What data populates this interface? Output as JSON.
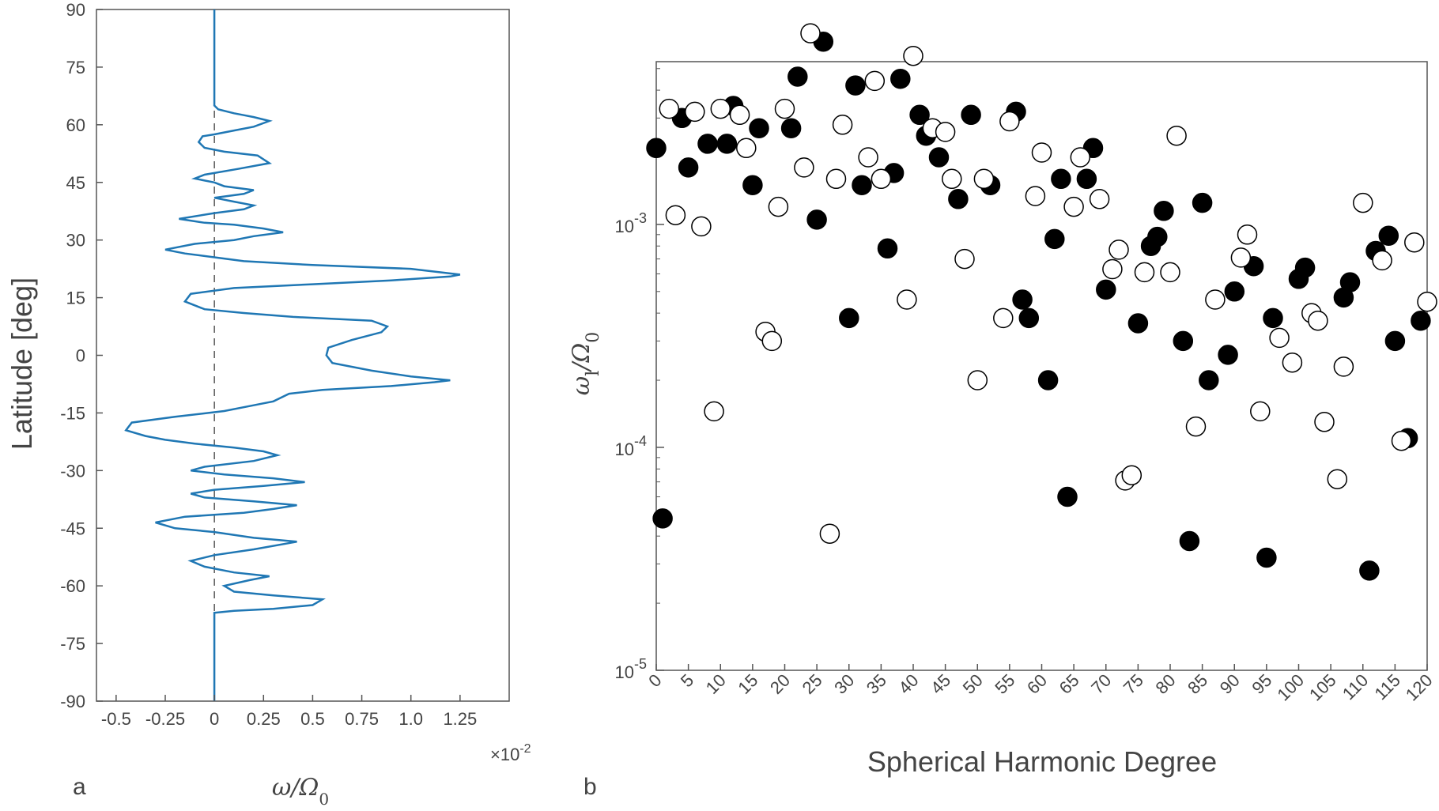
{
  "colors": {
    "curve": "#1f77b4",
    "axis": "#555555",
    "text": "#444444",
    "filled": "#000000"
  },
  "chart_data": [
    {
      "type": "line",
      "panel_label": "a",
      "orientation": "vertical-profile",
      "xlabel": "ω/Ω",
      "xlabel_sub": "0",
      "ylabel": "Latitude [deg]",
      "x_exponent_label": "×10",
      "x_exponent_sup": "-2",
      "xlim": [
        -0.6,
        1.5
      ],
      "ylim": [
        -90,
        90
      ],
      "xticks": [
        -0.5,
        -0.25,
        0,
        0.25,
        0.5,
        0.75,
        1.0,
        1.25
      ],
      "xtick_labels": [
        "-0.5",
        "-0.25",
        "0",
        "0.25",
        "0.5",
        "0.75",
        "1.0",
        "1.25"
      ],
      "yticks": [
        -90,
        -75,
        -60,
        -45,
        -30,
        -15,
        0,
        15,
        30,
        45,
        60,
        75,
        90
      ],
      "ytick_labels": [
        "-90",
        "-75",
        "-60",
        "-45",
        "-30",
        "-15",
        "0",
        "15",
        "30",
        "45",
        "60",
        "75",
        "90"
      ],
      "zero_line": "dashed",
      "series": [
        {
          "name": "omega_profile",
          "points": [
            [
              0,
              -90
            ],
            [
              0,
              -67
            ],
            [
              0.1,
              -66.5
            ],
            [
              0.3,
              -66
            ],
            [
              0.5,
              -65
            ],
            [
              0.55,
              -63.5
            ],
            [
              0.3,
              -62.5
            ],
            [
              0.1,
              -61.5
            ],
            [
              0.05,
              -60
            ],
            [
              0.18,
              -58.5
            ],
            [
              0.28,
              -57.5
            ],
            [
              0.1,
              -56.5
            ],
            [
              -0.05,
              -55
            ],
            [
              -0.12,
              -53.5
            ],
            [
              0,
              -52
            ],
            [
              0.2,
              -50.5
            ],
            [
              0.42,
              -48.5
            ],
            [
              0.2,
              -47.5
            ],
            [
              0,
              -46
            ],
            [
              -0.2,
              -45
            ],
            [
              -0.3,
              -43.5
            ],
            [
              -0.15,
              -42
            ],
            [
              0.15,
              -41
            ],
            [
              0.3,
              -40
            ],
            [
              0.42,
              -39
            ],
            [
              0.2,
              -38
            ],
            [
              -0.05,
              -37
            ],
            [
              -0.12,
              -36
            ],
            [
              0,
              -35
            ],
            [
              0.25,
              -34
            ],
            [
              0.46,
              -33
            ],
            [
              0.3,
              -32
            ],
            [
              0.05,
              -31
            ],
            [
              -0.12,
              -30
            ],
            [
              -0.05,
              -29
            ],
            [
              0.2,
              -27.5
            ],
            [
              0.32,
              -26
            ],
            [
              0.25,
              -25
            ],
            [
              0.1,
              -24
            ],
            [
              -0.1,
              -23
            ],
            [
              -0.25,
              -22
            ],
            [
              -0.35,
              -21
            ],
            [
              -0.45,
              -19.5
            ],
            [
              -0.42,
              -17.5
            ],
            [
              -0.2,
              -16
            ],
            [
              0.05,
              -14.5
            ],
            [
              0.2,
              -13
            ],
            [
              0.3,
              -12
            ],
            [
              0.38,
              -10
            ],
            [
              0.55,
              -9
            ],
            [
              0.9,
              -8
            ],
            [
              1.12,
              -7
            ],
            [
              1.2,
              -6.5
            ],
            [
              1.0,
              -5.5
            ],
            [
              0.8,
              -4
            ],
            [
              0.6,
              -2
            ],
            [
              0.57,
              0
            ],
            [
              0.58,
              2
            ],
            [
              0.7,
              4
            ],
            [
              0.85,
              6
            ],
            [
              0.88,
              7.5
            ],
            [
              0.8,
              9
            ],
            [
              0.4,
              10
            ],
            [
              0.15,
              11
            ],
            [
              -0.05,
              12
            ],
            [
              -0.15,
              14
            ],
            [
              -0.12,
              16
            ],
            [
              0.1,
              17.5
            ],
            [
              0.5,
              18.5
            ],
            [
              0.9,
              19.5
            ],
            [
              1.2,
              20.5
            ],
            [
              1.25,
              21
            ],
            [
              1.0,
              22.5
            ],
            [
              0.5,
              23.5
            ],
            [
              0.15,
              24.5
            ],
            [
              0,
              25.5
            ],
            [
              -0.15,
              26.5
            ],
            [
              -0.25,
              27.5
            ],
            [
              -0.1,
              29
            ],
            [
              0.1,
              30
            ],
            [
              0.2,
              31
            ],
            [
              0.35,
              32
            ],
            [
              0.25,
              33
            ],
            [
              0.1,
              34
            ],
            [
              -0.05,
              34.5
            ],
            [
              -0.18,
              35.5
            ],
            [
              0,
              37
            ],
            [
              0.15,
              38
            ],
            [
              0.2,
              39
            ],
            [
              0.1,
              40
            ],
            [
              0,
              41
            ],
            [
              0.15,
              42
            ],
            [
              0.2,
              43
            ],
            [
              0.05,
              44
            ],
            [
              0,
              45
            ],
            [
              -0.1,
              46
            ],
            [
              -0.05,
              47
            ],
            [
              0.12,
              48.5
            ],
            [
              0.28,
              50
            ],
            [
              0.22,
              52
            ],
            [
              0.05,
              53
            ],
            [
              -0.05,
              54
            ],
            [
              -0.08,
              55.5
            ],
            [
              -0.06,
              57
            ],
            [
              0,
              57.5
            ],
            [
              0.1,
              58.5
            ],
            [
              0.2,
              59.5
            ],
            [
              0.28,
              61
            ],
            [
              0.2,
              62
            ],
            [
              0.15,
              62.5
            ],
            [
              0.1,
              63
            ],
            [
              0.02,
              64
            ],
            [
              0,
              65
            ],
            [
              0,
              90
            ]
          ]
        }
      ]
    },
    {
      "type": "scatter",
      "panel_label": "b",
      "xlabel": "Spherical Harmonic Degree",
      "ylabel_symbol": "ω",
      "ylabel_sub": "l",
      "ylabel_rest": "/Ω",
      "ylabel_sub2": "0",
      "yscale": "log",
      "xlim": [
        0,
        120
      ],
      "ylim_exp": [
        -5,
        -2.27
      ],
      "xticks": [
        0,
        5,
        10,
        15,
        20,
        25,
        30,
        35,
        40,
        45,
        50,
        55,
        60,
        65,
        70,
        75,
        80,
        85,
        90,
        95,
        100,
        105,
        110,
        115,
        120
      ],
      "xtick_labels": [
        "0",
        "5",
        "10",
        "15",
        "20",
        "25",
        "30",
        "35",
        "40",
        "45",
        "50",
        "55",
        "60",
        "65",
        "70",
        "75",
        "80",
        "85",
        "90",
        "95",
        "100",
        "105",
        "110",
        "115",
        "120"
      ],
      "yticks_exp": [
        -3,
        -4,
        -5
      ],
      "ytick_base": "10",
      "ytick_sups": [
        "-3",
        "-4",
        "-5"
      ],
      "series": [
        {
          "name": "filled",
          "points": [
            [
              0,
              0.0022
            ],
            [
              1,
              4.8e-05
            ],
            [
              4,
              0.003
            ],
            [
              5,
              0.0018
            ],
            [
              8,
              0.0023
            ],
            [
              11,
              0.0023
            ],
            [
              12,
              0.0034
            ],
            [
              15,
              0.0015
            ],
            [
              16,
              0.0027
            ],
            [
              21,
              0.0027
            ],
            [
              22,
              0.0046
            ],
            [
              25,
              0.00105
            ],
            [
              26,
              0.0066
            ],
            [
              30,
              0.00038
            ],
            [
              31,
              0.0042
            ],
            [
              32,
              0.0015
            ],
            [
              36,
              0.00078
            ],
            [
              37,
              0.0017
            ],
            [
              38,
              0.0045
            ],
            [
              41,
              0.0031
            ],
            [
              42,
              0.0025
            ],
            [
              44,
              0.002
            ],
            [
              47,
              0.0013
            ],
            [
              49,
              0.0031
            ],
            [
              52,
              0.0015
            ],
            [
              56,
              0.0032
            ],
            [
              57,
              0.00046
            ],
            [
              58,
              0.00038
            ],
            [
              61,
              0.0002
            ],
            [
              62,
              0.00086
            ],
            [
              63,
              0.0016
            ],
            [
              64,
              6e-05
            ],
            [
              67,
              0.0016
            ],
            [
              68,
              0.0022
            ],
            [
              70,
              0.00051
            ],
            [
              75,
              0.00036
            ],
            [
              77,
              0.0008
            ],
            [
              78,
              0.00088
            ],
            [
              79,
              0.00115
            ],
            [
              82,
              0.0003
            ],
            [
              83,
              3.8e-05
            ],
            [
              85,
              0.00125
            ],
            [
              86,
              0.0002
            ],
            [
              89,
              0.00026
            ],
            [
              90,
              0.0005
            ],
            [
              93,
              0.00065
            ],
            [
              95,
              3.2e-05
            ],
            [
              96,
              0.00038
            ],
            [
              100,
              0.00057
            ],
            [
              101,
              0.00064
            ],
            [
              107,
              0.00047
            ],
            [
              108,
              0.00055
            ],
            [
              111,
              2.8e-05
            ],
            [
              112,
              0.00076
            ],
            [
              114,
              0.00089
            ],
            [
              115,
              0.0003
            ],
            [
              117,
              0.00011
            ],
            [
              119,
              0.00037
            ]
          ]
        },
        {
          "name": "open",
          "points": [
            [
              2,
              0.0033
            ],
            [
              3,
              0.0011
            ],
            [
              6,
              0.0032
            ],
            [
              7,
              0.00098
            ],
            [
              9,
              0.000145
            ],
            [
              10,
              0.0033
            ],
            [
              13,
              0.0031
            ],
            [
              14,
              0.0022
            ],
            [
              17,
              0.00033
            ],
            [
              18,
              0.0003
            ],
            [
              19,
              0.0012
            ],
            [
              20,
              0.0033
            ],
            [
              23,
              0.0018
            ],
            [
              24,
              0.0072
            ],
            [
              27,
              4.1e-05
            ],
            [
              28,
              0.0016
            ],
            [
              29,
              0.0028
            ],
            [
              33,
              0.002
            ],
            [
              34,
              0.0044
            ],
            [
              35,
              0.0016
            ],
            [
              39,
              0.00046
            ],
            [
              40,
              0.0057
            ],
            [
              43,
              0.0027
            ],
            [
              45,
              0.0026
            ],
            [
              46,
              0.0016
            ],
            [
              48,
              0.0007
            ],
            [
              50,
              0.0002
            ],
            [
              51,
              0.0016
            ],
            [
              55,
              0.0029
            ],
            [
              54,
              0.00038
            ],
            [
              59,
              0.00134
            ],
            [
              60,
              0.0021
            ],
            [
              65,
              0.0012
            ],
            [
              66,
              0.002
            ],
            [
              69,
              0.0013
            ],
            [
              71,
              0.00063
            ],
            [
              72,
              0.00077
            ],
            [
              73,
              7.1e-05
            ],
            [
              74,
              7.5e-05
            ],
            [
              76,
              0.00061
            ],
            [
              80,
              0.00061
            ],
            [
              81,
              0.0025
            ],
            [
              84,
              0.000124
            ],
            [
              87,
              0.00046
            ],
            [
              91,
              0.00071
            ],
            [
              92,
              0.0009
            ],
            [
              94,
              0.000145
            ],
            [
              97,
              0.00031
            ],
            [
              99,
              0.00024
            ],
            [
              102,
              0.0004
            ],
            [
              103,
              0.00037
            ],
            [
              104,
              0.00013
            ],
            [
              106,
              7.2e-05
            ],
            [
              107,
              0.00023
            ],
            [
              110,
              0.00125
            ],
            [
              113,
              0.00069
            ],
            [
              116,
              0.000107
            ],
            [
              118,
              0.00083
            ],
            [
              120,
              0.00045
            ]
          ]
        }
      ]
    }
  ]
}
